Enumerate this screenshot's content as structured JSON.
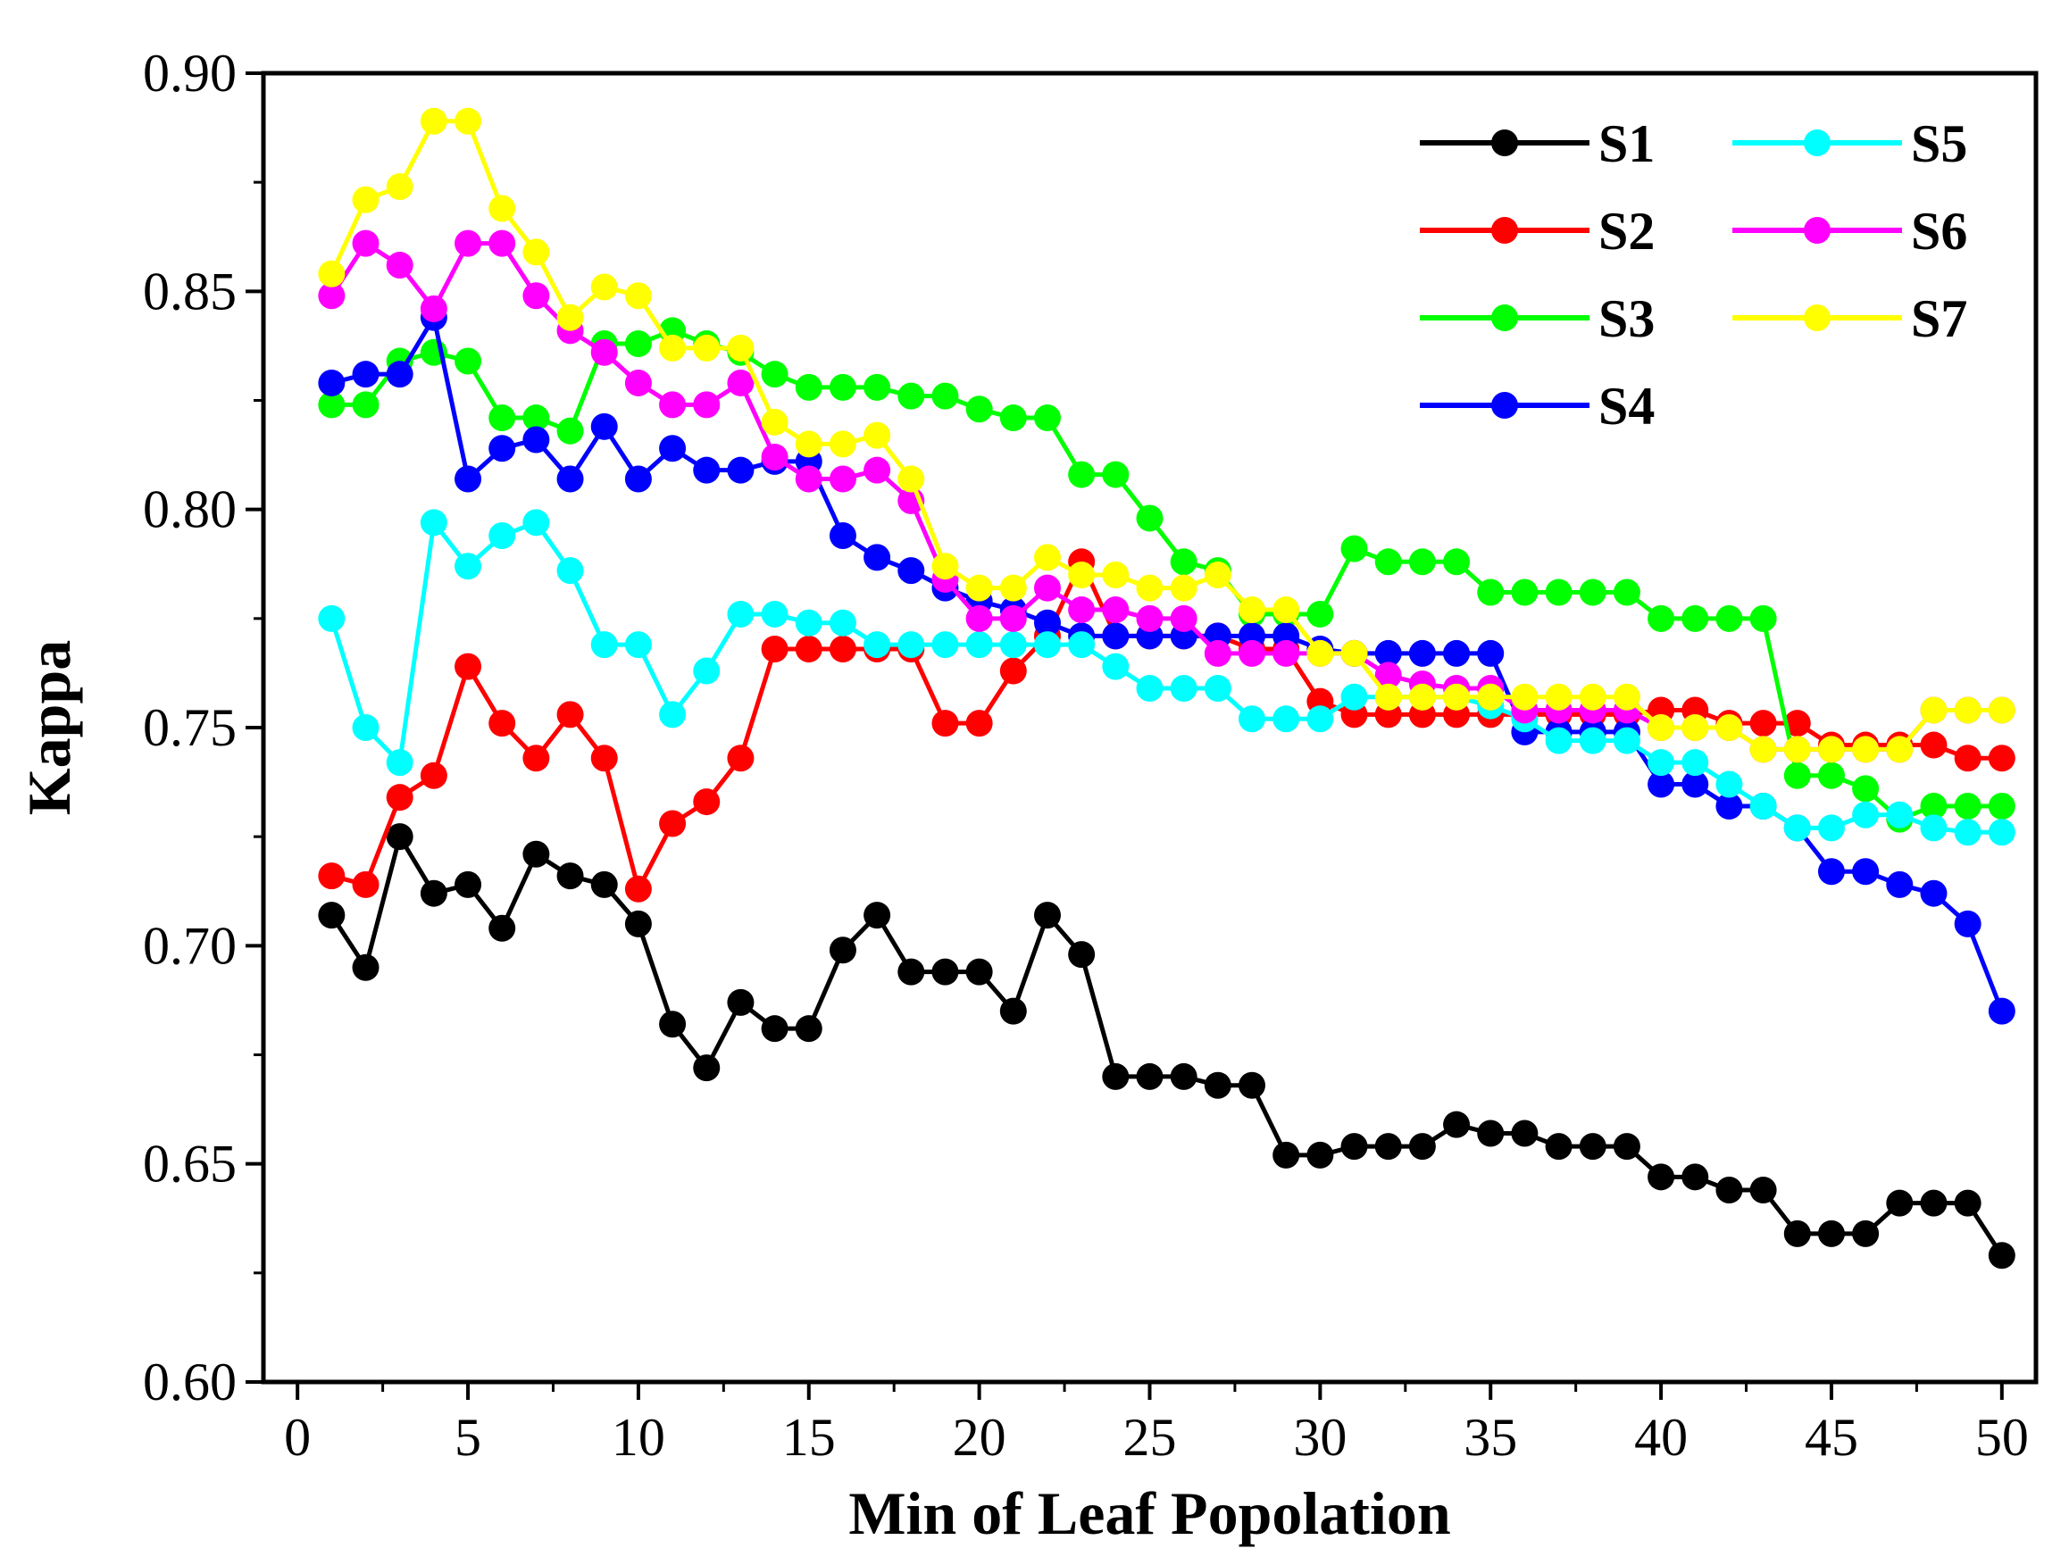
{
  "chart_data": {
    "type": "line",
    "title": "",
    "xlabel": "Min of Leaf Popolation",
    "ylabel": "Kappa",
    "xlim": [
      -1,
      51
    ],
    "ylim": [
      0.6,
      0.9
    ],
    "xticks": [
      0,
      5,
      10,
      15,
      20,
      25,
      30,
      35,
      40,
      45,
      50
    ],
    "xtick_labels": [
      "0",
      "5",
      "10",
      "15",
      "20",
      "25",
      "30",
      "35",
      "40",
      "45",
      "50"
    ],
    "yticks": [
      0.6,
      0.65,
      0.7,
      0.75,
      0.8,
      0.85,
      0.9
    ],
    "ytick_labels": [
      "0.60",
      "0.65",
      "0.70",
      "0.75",
      "0.80",
      "0.85",
      "0.90"
    ],
    "grid": false,
    "legend_position": "top-right",
    "x": [
      1,
      2,
      3,
      4,
      5,
      6,
      7,
      8,
      9,
      10,
      11,
      12,
      13,
      14,
      15,
      16,
      17,
      18,
      19,
      20,
      21,
      22,
      23,
      24,
      25,
      26,
      27,
      28,
      29,
      30,
      31,
      32,
      33,
      34,
      35,
      36,
      37,
      38,
      39,
      40,
      41,
      42,
      43,
      44,
      45,
      46,
      47,
      48,
      49,
      50
    ],
    "series": [
      {
        "name": "S1",
        "color": "#000000",
        "values": [
          0.707,
          0.695,
          0.725,
          0.712,
          0.714,
          0.704,
          0.721,
          0.716,
          0.714,
          0.705,
          0.682,
          0.672,
          0.687,
          0.681,
          0.681,
          0.699,
          0.707,
          0.694,
          0.694,
          0.694,
          0.685,
          0.707,
          0.698,
          0.67,
          0.67,
          0.67,
          0.668,
          0.668,
          0.652,
          0.652,
          0.654,
          0.654,
          0.654,
          0.659,
          0.657,
          0.657,
          0.654,
          0.654,
          0.654,
          0.647,
          0.647,
          0.644,
          0.644,
          0.634,
          0.634,
          0.634,
          0.641,
          0.641,
          0.641,
          0.629
        ]
      },
      {
        "name": "S2",
        "color": "#ff0000",
        "values": [
          0.716,
          0.714,
          0.734,
          0.739,
          0.764,
          0.751,
          0.743,
          0.753,
          0.743,
          0.713,
          0.728,
          0.733,
          0.743,
          0.768,
          0.768,
          0.768,
          0.768,
          0.768,
          0.751,
          0.751,
          0.763,
          0.771,
          0.788,
          0.771,
          0.771,
          0.771,
          0.771,
          0.768,
          0.768,
          0.756,
          0.753,
          0.753,
          0.753,
          0.753,
          0.753,
          0.753,
          0.753,
          0.753,
          0.753,
          0.754,
          0.754,
          0.751,
          0.751,
          0.751,
          0.746,
          0.746,
          0.746,
          0.746,
          0.743,
          0.743
        ]
      },
      {
        "name": "S3",
        "color": "#00ff00",
        "values": [
          0.824,
          0.824,
          0.834,
          0.836,
          0.834,
          0.821,
          0.821,
          0.818,
          0.838,
          0.838,
          0.841,
          0.838,
          0.836,
          0.831,
          0.828,
          0.828,
          0.828,
          0.826,
          0.826,
          0.823,
          0.821,
          0.821,
          0.808,
          0.808,
          0.798,
          0.788,
          0.786,
          0.776,
          0.776,
          0.776,
          0.791,
          0.788,
          0.788,
          0.788,
          0.781,
          0.781,
          0.781,
          0.781,
          0.781,
          0.775,
          0.775,
          0.775,
          0.775,
          0.739,
          0.739,
          0.736,
          0.729,
          0.732,
          0.732,
          0.732
        ]
      },
      {
        "name": "S4",
        "color": "#0000ff",
        "values": [
          0.829,
          0.831,
          0.831,
          0.844,
          0.807,
          0.814,
          0.816,
          0.807,
          0.819,
          0.807,
          0.814,
          0.809,
          0.809,
          0.811,
          0.811,
          0.794,
          0.789,
          0.786,
          0.782,
          0.779,
          0.777,
          0.774,
          0.771,
          0.771,
          0.771,
          0.771,
          0.771,
          0.771,
          0.771,
          0.768,
          0.767,
          0.767,
          0.767,
          0.767,
          0.767,
          0.749,
          0.749,
          0.749,
          0.749,
          0.737,
          0.737,
          0.732,
          0.732,
          0.727,
          0.717,
          0.717,
          0.714,
          0.712,
          0.705,
          0.685
        ]
      },
      {
        "name": "S5",
        "color": "#00ffff",
        "values": [
          0.775,
          0.75,
          0.742,
          0.797,
          0.787,
          0.794,
          0.797,
          0.786,
          0.769,
          0.769,
          0.753,
          0.763,
          0.776,
          0.776,
          0.774,
          0.774,
          0.769,
          0.769,
          0.769,
          0.769,
          0.769,
          0.769,
          0.769,
          0.764,
          0.759,
          0.759,
          0.759,
          0.752,
          0.752,
          0.752,
          0.757,
          0.757,
          0.757,
          0.757,
          0.755,
          0.752,
          0.747,
          0.747,
          0.747,
          0.742,
          0.742,
          0.737,
          0.732,
          0.727,
          0.727,
          0.73,
          0.73,
          0.727,
          0.726,
          0.726
        ]
      },
      {
        "name": "S6",
        "color": "#ff00ff",
        "values": [
          0.849,
          0.861,
          0.856,
          0.846,
          0.861,
          0.861,
          0.849,
          0.841,
          0.836,
          0.829,
          0.824,
          0.824,
          0.829,
          0.812,
          0.807,
          0.807,
          0.809,
          0.802,
          0.784,
          0.775,
          0.775,
          0.782,
          0.777,
          0.777,
          0.775,
          0.775,
          0.767,
          0.767,
          0.767,
          0.767,
          0.767,
          0.762,
          0.76,
          0.759,
          0.759,
          0.754,
          0.754,
          0.754,
          0.754,
          0.75,
          0.75,
          0.75,
          0.745,
          0.745,
          0.745,
          0.745,
          0.745,
          0.754,
          0.754,
          0.754
        ]
      },
      {
        "name": "S7",
        "color": "#ffff00",
        "values": [
          0.854,
          0.871,
          0.874,
          0.889,
          0.889,
          0.869,
          0.859,
          0.844,
          0.851,
          0.849,
          0.837,
          0.837,
          0.837,
          0.82,
          0.815,
          0.815,
          0.817,
          0.807,
          0.787,
          0.782,
          0.782,
          0.789,
          0.785,
          0.785,
          0.782,
          0.782,
          0.785,
          0.777,
          0.777,
          0.767,
          0.767,
          0.757,
          0.757,
          0.757,
          0.757,
          0.757,
          0.757,
          0.757,
          0.757,
          0.75,
          0.75,
          0.75,
          0.745,
          0.745,
          0.745,
          0.745,
          0.745,
          0.754,
          0.754,
          0.754
        ]
      }
    ]
  }
}
